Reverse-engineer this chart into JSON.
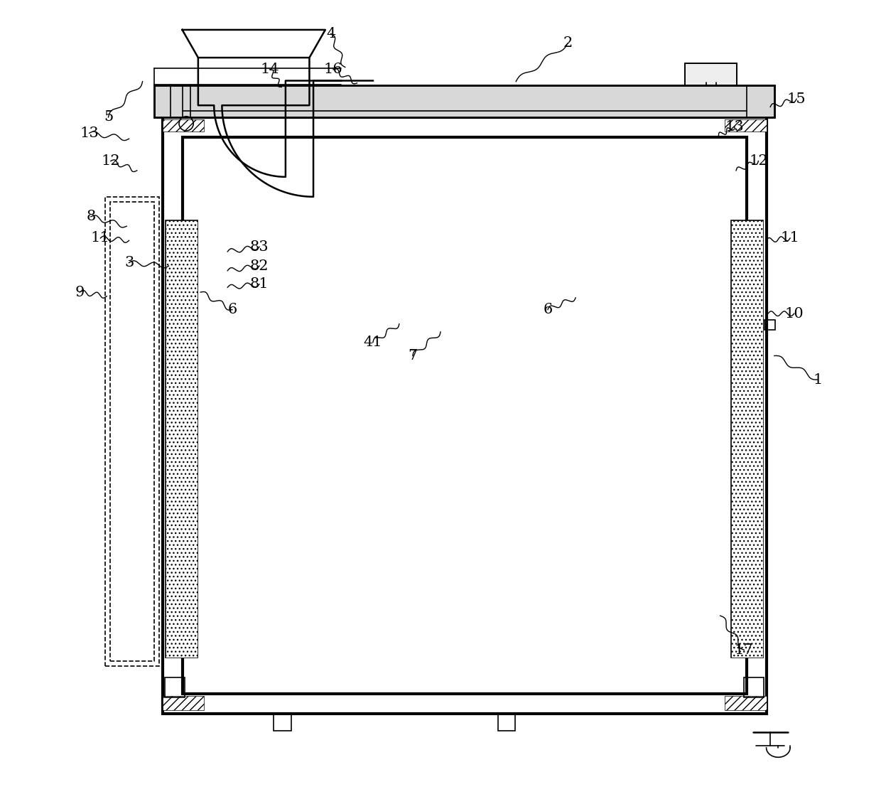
{
  "bg_color": "#ffffff",
  "line_color": "#000000",
  "fig_width": 12.4,
  "fig_height": 11.24
}
